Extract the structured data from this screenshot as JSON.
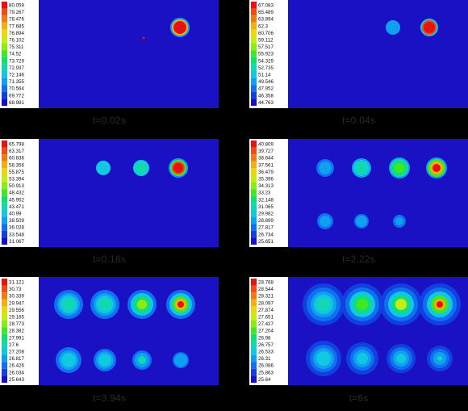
{
  "panels": [
    {
      "caption": "t=0.02s",
      "legend": [
        "80.059",
        "79.267",
        "78.476",
        "77.685",
        "76.894",
        "76.102",
        "75.311",
        "74.52",
        "73.729",
        "72.937",
        "72.146",
        "71.355",
        "70.564",
        "69.772",
        "68.981"
      ]
    },
    {
      "caption": "t=0.04s",
      "legend": [
        "67.083",
        "65.489",
        "63.894",
        "62.3",
        "60.706",
        "59.112",
        "57.517",
        "55.923",
        "54.329",
        "52.735",
        "51.14",
        "49.546",
        "47.952",
        "46.358",
        "44.763"
      ]
    },
    {
      "caption": "t=0.16s",
      "legend": [
        "65.798",
        "63.317",
        "60.836",
        "58.356",
        "55.875",
        "53.394",
        "50.913",
        "48.432",
        "45.952",
        "43.471",
        "40.99",
        "38.509",
        "36.028",
        "33.548",
        "31.067"
      ]
    },
    {
      "caption": "t=2.22s",
      "legend": [
        "40.809",
        "39.727",
        "38.644",
        "37.561",
        "36.479",
        "35.396",
        "34.313",
        "33.23",
        "32.148",
        "31.065",
        "29.982",
        "28.899",
        "27.817",
        "26.734",
        "25.651"
      ]
    },
    {
      "caption": "t=3.94s",
      "legend": [
        "31.121",
        "30.73",
        "30.339",
        "29.947",
        "29.556",
        "29.165",
        "28.773",
        "28.382",
        "27.991",
        "27.6",
        "27.208",
        "26.817",
        "26.426",
        "26.034",
        "25.643"
      ]
    },
    {
      "caption": "t=6s",
      "legend": [
        "28.768",
        "28.544",
        "28.321",
        "28.097",
        "27.874",
        "27.651",
        "27.427",
        "27.204",
        "26.98",
        "26.757",
        "26.533",
        "26.31",
        "26.086",
        "25.863",
        "25.64"
      ]
    }
  ],
  "colors": {
    "background": "#000000",
    "domain_blue": "#1a10c4",
    "caption_text": "#2a2a2a",
    "colormap": [
      "#e81010",
      "#f04c10",
      "#f07a10",
      "#f0b010",
      "#e8d810",
      "#c8ec10",
      "#8cec10",
      "#40e820",
      "#10e070",
      "#10d8b0",
      "#10c8e0",
      "#10a0f0",
      "#1070f0",
      "#1040e0",
      "#1810c8"
    ]
  }
}
